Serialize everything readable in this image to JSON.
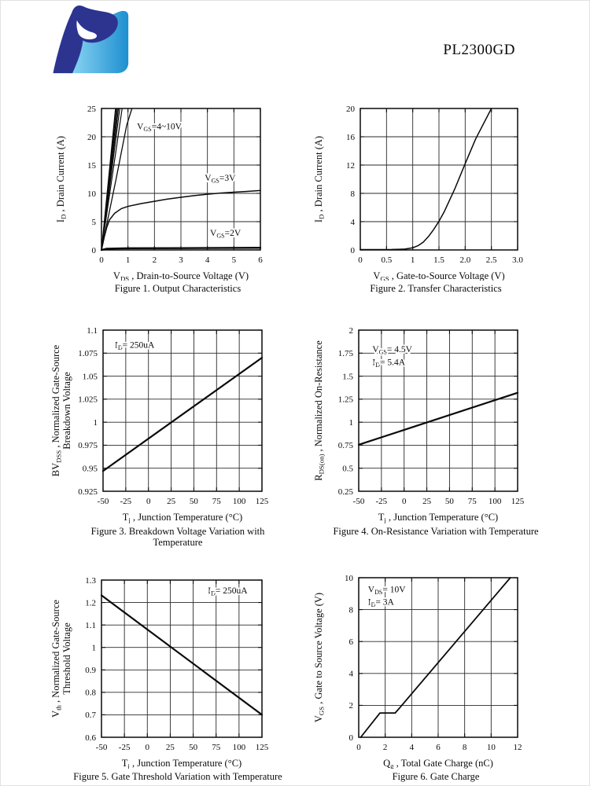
{
  "header": {
    "title": "PL2300GD",
    "logo_name": "brand-logo-P",
    "logo_colors": {
      "navy": "#2C3490",
      "light_blue": "#8FD8F4",
      "mid_blue": "#1E8FD0"
    }
  },
  "chart_data": [
    {
      "type": "line",
      "title": "Figure 1. Output Characteristics",
      "xlabel": "V_{DS} , Drain-to-Source Voltage (V)",
      "ylabel_lines": [
        "I_{D} , Drain Current (A)"
      ],
      "xlim": [
        0,
        6
      ],
      "ylim": [
        0,
        25
      ],
      "grid": true,
      "xticks": {
        "values": [
          0,
          1,
          2,
          3,
          4,
          5,
          6
        ],
        "labels": [
          "0",
          "1",
          "2",
          "3",
          "4",
          "5",
          "6"
        ]
      },
      "yticks": {
        "values": [
          0,
          5,
          10,
          15,
          20,
          25
        ],
        "labels": [
          "0",
          "5",
          "10",
          "15",
          "20",
          "25"
        ]
      },
      "series": [
        {
          "name": "VGS=4~10V fan 1",
          "w": 1.2,
          "points": [
            [
              0,
              0
            ],
            [
              0.53,
              25
            ]
          ]
        },
        {
          "name": "VGS=4~10V fan 2",
          "w": 1.2,
          "points": [
            [
              0,
              0
            ],
            [
              0.56,
              25
            ]
          ]
        },
        {
          "name": "VGS=4~10V fan 3",
          "w": 1.2,
          "points": [
            [
              0,
              0
            ],
            [
              0.6,
              25
            ]
          ]
        },
        {
          "name": "VGS=4~10V fan 4",
          "w": 1.2,
          "points": [
            [
              0,
              0
            ],
            [
              0.64,
              25
            ]
          ]
        },
        {
          "name": "VGS=4~10V fan 5",
          "w": 1.2,
          "points": [
            [
              0,
              0
            ],
            [
              0.69,
              25
            ]
          ]
        },
        {
          "name": "VGS=4~10V fan 6",
          "w": 1.2,
          "points": [
            [
              0,
              0
            ],
            [
              0.78,
              25
            ]
          ]
        },
        {
          "name": "VGS=4V",
          "w": 1.3,
          "points": [
            [
              0,
              0
            ],
            [
              0.55,
              12.5
            ],
            [
              0.95,
              22
            ],
            [
              1.15,
              25
            ]
          ]
        },
        {
          "name": "VGS=3V",
          "w": 1.5,
          "points": [
            [
              0,
              0
            ],
            [
              0.1,
              2.2
            ],
            [
              0.2,
              4.0
            ],
            [
              0.3,
              5.3
            ],
            [
              0.5,
              6.5
            ],
            [
              0.75,
              7.3
            ],
            [
              1,
              7.7
            ],
            [
              1.5,
              8.2
            ],
            [
              2,
              8.6
            ],
            [
              2.5,
              9.0
            ],
            [
              3,
              9.3
            ],
            [
              3.5,
              9.6
            ],
            [
              4,
              9.85
            ],
            [
              4.5,
              10.05
            ],
            [
              5,
              10.2
            ],
            [
              5.5,
              10.35
            ],
            [
              6,
              10.5
            ]
          ]
        },
        {
          "name": "VGS=2V",
          "w": 2.4,
          "points": [
            [
              0,
              0
            ],
            [
              0.2,
              0.22
            ],
            [
              1,
              0.3
            ],
            [
              3,
              0.32
            ],
            [
              6,
              0.38
            ]
          ]
        }
      ],
      "annotations": [
        {
          "text": "V_{GS}=4~10V",
          "x": 1.34,
          "y": 21.3
        },
        {
          "text": "V_{GS}=3V",
          "x": 3.9,
          "y": 12.2
        },
        {
          "text": "V_{GS}=2V",
          "x": 4.1,
          "y": 2.5
        }
      ]
    },
    {
      "type": "line",
      "title": "Figure 2. Transfer Characteristics",
      "xlabel": "V_{GS} , Gate-to-Source Voltage (V)",
      "ylabel_lines": [
        "I_{D} , Drain Current (A)"
      ],
      "xlim": [
        0,
        3
      ],
      "ylim": [
        0,
        20
      ],
      "grid": true,
      "xticks": {
        "values": [
          0,
          0.5,
          1,
          1.5,
          2,
          2.5,
          3
        ],
        "labels": [
          "0",
          "0.5",
          "1",
          "1.5",
          "2.0",
          "2.5",
          "3.0"
        ]
      },
      "yticks": {
        "values": [
          0,
          4,
          8,
          12,
          16,
          20
        ],
        "labels": [
          "0",
          "4",
          "8",
          "12",
          "16",
          "20"
        ]
      },
      "series": [
        {
          "name": "transfer curve",
          "w": 1.5,
          "points": [
            [
              0,
              0.05
            ],
            [
              0.6,
              0.07
            ],
            [
              0.85,
              0.12
            ],
            [
              1.0,
              0.3
            ],
            [
              1.1,
              0.6
            ],
            [
              1.2,
              1.1
            ],
            [
              1.3,
              1.9
            ],
            [
              1.4,
              2.9
            ],
            [
              1.5,
              4.05
            ],
            [
              1.6,
              5.4
            ],
            [
              1.8,
              8.6
            ],
            [
              2.0,
              12.2
            ],
            [
              2.2,
              15.7
            ],
            [
              2.5,
              20
            ]
          ]
        }
      ],
      "annotations": []
    },
    {
      "type": "line",
      "title": "Figure 3. Breakdown Voltage Variation with\nTemperature",
      "xlabel": "T_{j} , Junction Temperature (°C)",
      "ylabel_lines": [
        "BV_{DSS} , Normalized Gate-Source",
        "Breakdown Voltage"
      ],
      "xlim": [
        -50,
        125
      ],
      "ylim": [
        0.925,
        1.1
      ],
      "grid": true,
      "xticks": {
        "values": [
          -50,
          -25,
          0,
          25,
          50,
          75,
          100,
          125
        ],
        "labels": [
          "-50",
          "-25",
          "0",
          "25",
          "50",
          "75",
          "100",
          "125"
        ]
      },
      "yticks": {
        "values": [
          0.925,
          0.95,
          0.975,
          1,
          1.025,
          1.05,
          1.075,
          1.1
        ],
        "labels": [
          "0.925",
          "0.95",
          "0.975",
          "1",
          "1.025",
          "1.05",
          "1.075",
          "1.1"
        ]
      },
      "series": [
        {
          "name": "BVDSS vs Tj",
          "w": 2.2,
          "points": [
            [
              -50,
              0.947
            ],
            [
              125,
              1.07
            ]
          ]
        }
      ],
      "annotations": [
        {
          "text": "I_{D}= 250uA",
          "x": -37,
          "y": 1.081
        }
      ]
    },
    {
      "type": "line",
      "title": "Figure 4. On-Resistance Variation with Temperature",
      "xlabel": "T_{j} , Junction Temperature (°C)",
      "ylabel_lines": [
        "R_{DS(on)} , Normalized On-Resistance"
      ],
      "xlim": [
        -50,
        125
      ],
      "ylim": [
        0.25,
        2
      ],
      "grid": true,
      "xticks": {
        "values": [
          -50,
          -25,
          0,
          25,
          50,
          75,
          100,
          125
        ],
        "labels": [
          "-50",
          "-25",
          "0",
          "25",
          "50",
          "75",
          "100",
          "125"
        ]
      },
      "yticks": {
        "values": [
          0.25,
          0.5,
          0.75,
          1,
          1.25,
          1.5,
          1.75,
          2
        ],
        "labels": [
          "0.25",
          "0.5",
          "0.75",
          "1",
          "1.25",
          "1.5",
          "1.75",
          "2"
        ]
      },
      "series": [
        {
          "name": "RDS(on) vs Tj",
          "w": 2.2,
          "points": [
            [
              -50,
              0.755
            ],
            [
              125,
              1.32
            ]
          ]
        }
      ],
      "annotations": [
        {
          "text": "V_{GS}= 4.5V",
          "x": -35,
          "y": 1.76
        },
        {
          "text": "I_{D}= 5.4A",
          "x": -35,
          "y": 1.62
        }
      ]
    },
    {
      "type": "line",
      "title": "Figure 5. Gate Threshold Variation with Temperature",
      "xlabel": "T_{j} , Junction Temperature (°C)",
      "ylabel_lines": [
        "V_{th} , Normalized Gate-Source",
        "Threshold Voltage"
      ],
      "xlim": [
        -50,
        125
      ],
      "ylim": [
        0.6,
        1.3
      ],
      "grid": true,
      "xticks": {
        "values": [
          -50,
          -25,
          0,
          25,
          50,
          75,
          100,
          125
        ],
        "labels": [
          "-50",
          "-25",
          "0",
          "25",
          "50",
          "75",
          "100",
          "125"
        ]
      },
      "yticks": {
        "values": [
          0.6,
          0.7,
          0.8,
          0.9,
          1,
          1.1,
          1.2,
          1.3
        ],
        "labels": [
          "0.6",
          "0.7",
          "0.8",
          "0.9",
          "1",
          "1.1",
          "1.2",
          "1.3"
        ]
      },
      "series": [
        {
          "name": "Vth vs Tj",
          "w": 2.2,
          "points": [
            [
              -50,
              1.232
            ],
            [
              125,
              0.7
            ]
          ]
        }
      ],
      "annotations": [
        {
          "text": "I_{D}= 250uA",
          "x": 66,
          "y": 1.24
        }
      ]
    },
    {
      "type": "line",
      "title": "Figure 6. Gate Charge",
      "xlabel": "Q_{g} , Total Gate Charge (nC)",
      "ylabel_lines": [
        "V_{GS} , Gate to Source Voltage (V)"
      ],
      "xlim": [
        0,
        12
      ],
      "ylim": [
        0,
        10
      ],
      "grid": true,
      "xticks": {
        "values": [
          0,
          2,
          4,
          6,
          8,
          10,
          12
        ],
        "labels": [
          "0",
          "2",
          "4",
          "6",
          "8",
          "10",
          "12"
        ]
      },
      "yticks": {
        "values": [
          0,
          2,
          4,
          6,
          8,
          10
        ],
        "labels": [
          "0",
          "2",
          "4",
          "6",
          "8",
          "10"
        ]
      },
      "series": [
        {
          "name": "gate charge curve",
          "w": 1.8,
          "points": [
            [
              0.15,
              0
            ],
            [
              1.6,
              1.52
            ],
            [
              2.75,
              1.52
            ],
            [
              3.1,
              1.85
            ],
            [
              11.45,
              10
            ]
          ]
        }
      ],
      "annotations": [
        {
          "text": "V_{DS}= 10V",
          "x": 0.7,
          "y": 9.1
        },
        {
          "text": "I_{D}= 3A",
          "x": 0.7,
          "y": 8.3
        }
      ]
    }
  ]
}
